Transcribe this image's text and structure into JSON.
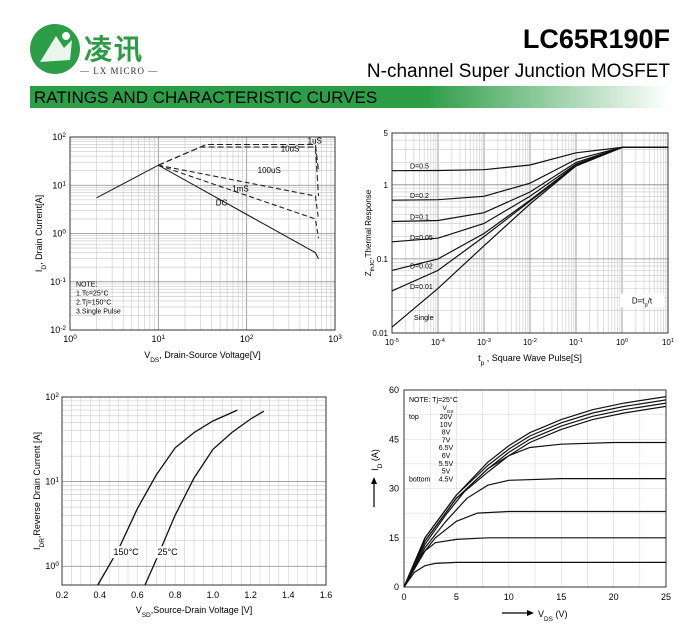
{
  "header": {
    "logo_cn": "凌讯",
    "logo_en": "— LX MICRO —",
    "part_number": "LC65R190F",
    "description": "N-channel Super Junction MOSFET",
    "section_title": "RATINGS AND CHARACTERISTIC CURVES",
    "brand_color": "#2e9d48"
  },
  "chart_data": [
    {
      "type": "line",
      "xlabel": "V_DS, Drain-Source Voltage[V]",
      "ylabel": "I_D, Drain Current[A]",
      "x_scale": "log",
      "y_scale": "log",
      "xlim": [
        1,
        1000
      ],
      "ylim": [
        0.01,
        100
      ],
      "x_ticks": [
        "10^0",
        "10^1",
        "10^2",
        "10^3"
      ],
      "y_ticks": [
        "10^-2",
        "10^-1",
        "10^0",
        "10^1",
        "10^2"
      ],
      "notes": [
        "NOTE:",
        "1.Tc=25°C",
        "2.Tj=150°C",
        "3.Single Pulse"
      ],
      "grid": true,
      "series": [
        {
          "name": "1uS",
          "x": [
            10,
            35,
            600,
            650
          ],
          "y": [
            26,
            70,
            70,
            20
          ]
        },
        {
          "name": "10uS",
          "x": [
            10,
            30,
            600,
            650
          ],
          "y": [
            26,
            62,
            62,
            6
          ]
        },
        {
          "name": "100uS",
          "x": [
            10,
            600,
            650
          ],
          "y": [
            26,
            6,
            2
          ]
        },
        {
          "name": "1mS",
          "x": [
            10,
            600,
            650
          ],
          "y": [
            26,
            2,
            0.8
          ]
        },
        {
          "name": "DC",
          "x": [
            2,
            10,
            600,
            650
          ],
          "y": [
            5.5,
            26,
            0.4,
            0.3
          ]
        }
      ]
    },
    {
      "type": "line",
      "xlabel": "t_p , Square Wave Pulse[S]",
      "ylabel": "Z_thJC,Thermal Response",
      "x_scale": "log",
      "y_scale": "log",
      "xlim": [
        1e-05,
        1
      ],
      "ylim": [
        0.01,
        5
      ],
      "x_ticks": [
        "10^-5",
        "10^-4",
        "10^-3",
        "10^-2",
        "10^-1",
        "10^0",
        "10^1"
      ],
      "y_ticks": [
        "0.01",
        "0.1",
        "1",
        "5"
      ],
      "annotation": "D=t_p/t",
      "grid": true,
      "series": [
        {
          "name": "D=0.5",
          "x": [
            1e-05,
            0.0001,
            0.001,
            0.01,
            0.1,
            1
          ],
          "y": [
            1.55,
            1.56,
            1.6,
            1.85,
            2.7,
            3.2
          ]
        },
        {
          "name": "D=0.2",
          "x": [
            1e-05,
            0.0001,
            0.001,
            0.01,
            0.1,
            1
          ],
          "y": [
            0.62,
            0.63,
            0.7,
            1.05,
            2.2,
            3.2
          ]
        },
        {
          "name": "D=0.1",
          "x": [
            1e-05,
            0.0001,
            0.001,
            0.01,
            0.1,
            1
          ],
          "y": [
            0.32,
            0.33,
            0.42,
            0.8,
            2.0,
            3.2
          ]
        },
        {
          "name": "D=0.05",
          "x": [
            1e-05,
            0.0001,
            0.001,
            0.01,
            0.1,
            1
          ],
          "y": [
            0.17,
            0.19,
            0.3,
            0.7,
            1.9,
            3.2
          ]
        },
        {
          "name": "D=0.02",
          "x": [
            1e-05,
            0.0001,
            0.001,
            0.01,
            0.1,
            1
          ],
          "y": [
            0.07,
            0.1,
            0.22,
            0.62,
            1.85,
            3.2
          ]
        },
        {
          "name": "D=0.01",
          "x": [
            1e-05,
            0.0001,
            0.001,
            0.01,
            0.1,
            1
          ],
          "y": [
            0.037,
            0.07,
            0.2,
            0.6,
            1.8,
            3.2
          ]
        },
        {
          "name": "Single",
          "x": [
            1e-05,
            0.0001,
            0.001,
            0.01,
            0.1,
            1
          ],
          "y": [
            0.012,
            0.04,
            0.15,
            0.55,
            1.8,
            3.2
          ]
        }
      ]
    },
    {
      "type": "line",
      "xlabel": "V_SD,Source-Drain Voltage [V]",
      "ylabel": "I_DR,Reverse Drain Current [A]",
      "x_scale": "linear",
      "y_scale": "log",
      "xlim": [
        0.2,
        1.6
      ],
      "ylim": [
        0.6,
        100
      ],
      "x_ticks": [
        "0.2",
        "0.4",
        "0.6",
        "0.8",
        "1.0",
        "1.2",
        "1.4",
        "1.6"
      ],
      "y_ticks": [
        "10^0",
        "10^1",
        "10^2"
      ],
      "grid": true,
      "series": [
        {
          "name": "150°C",
          "x": [
            0.39,
            0.5,
            0.6,
            0.7,
            0.8,
            0.9,
            1.0,
            1.13
          ],
          "y": [
            0.6,
            1.6,
            4.8,
            12,
            25,
            38,
            52,
            70
          ]
        },
        {
          "name": "25°C",
          "x": [
            0.64,
            0.7,
            0.8,
            0.9,
            1.0,
            1.1,
            1.2,
            1.27
          ],
          "y": [
            0.6,
            1.2,
            4,
            11,
            24,
            38,
            55,
            68
          ]
        }
      ]
    },
    {
      "type": "line",
      "xlabel": "V_DS (V)",
      "ylabel": "I_D (A)",
      "xlim": [
        0,
        25
      ],
      "ylim": [
        0,
        60
      ],
      "x_ticks": [
        "0",
        "5",
        "10",
        "15",
        "20",
        "25"
      ],
      "y_ticks": [
        "0",
        "15",
        "30",
        "45",
        "60"
      ],
      "notes": [
        "NOTE: Tj=25°C"
      ],
      "legend_title": "V_GS",
      "legend_prefix_top": "top",
      "legend_prefix_bottom": "bottom",
      "legend": [
        "20V",
        "10V",
        "8V",
        "7V",
        "6.5V",
        "6V",
        "5.5V",
        "5V",
        "4.5V"
      ],
      "grid": true,
      "series": [
        {
          "name": "20V",
          "x": [
            0,
            2,
            5,
            8,
            10,
            12,
            15,
            18,
            21,
            25
          ],
          "y": [
            0,
            15,
            28,
            38,
            43,
            47,
            51,
            54,
            56,
            58
          ]
        },
        {
          "name": "10V",
          "x": [
            0,
            2,
            5,
            8,
            10,
            12,
            15,
            18,
            21,
            25
          ],
          "y": [
            0,
            15,
            28,
            37,
            42,
            46,
            50,
            53,
            55,
            57
          ]
        },
        {
          "name": "8V",
          "x": [
            0,
            2,
            5,
            8,
            10,
            12,
            15,
            18,
            21,
            25
          ],
          "y": [
            0,
            14,
            27,
            36,
            41,
            45,
            49,
            52,
            54,
            56
          ]
        },
        {
          "name": "7V",
          "x": [
            0,
            2,
            5,
            8,
            10,
            12,
            15,
            18,
            21,
            25
          ],
          "y": [
            0,
            14,
            27,
            35,
            40,
            44,
            48,
            51,
            53,
            55
          ]
        },
        {
          "name": "6.5V",
          "x": [
            0,
            2,
            4,
            6,
            8,
            10,
            12,
            15,
            20,
            25
          ],
          "y": [
            0,
            13,
            22,
            30,
            36,
            40,
            42.5,
            43.5,
            44,
            44
          ]
        },
        {
          "name": "6V",
          "x": [
            0,
            2,
            4,
            6,
            8,
            10,
            15,
            25
          ],
          "y": [
            0,
            12,
            20,
            27,
            31,
            32.5,
            33,
            33
          ]
        },
        {
          "name": "5.5V",
          "x": [
            0,
            2,
            3,
            5,
            7,
            10,
            25
          ],
          "y": [
            0,
            11,
            15,
            20,
            22.5,
            23,
            23
          ]
        },
        {
          "name": "5V",
          "x": [
            0,
            1,
            2,
            3,
            5,
            8,
            25
          ],
          "y": [
            0,
            7,
            11,
            13.5,
            14.5,
            15,
            15
          ]
        },
        {
          "name": "4.5V",
          "x": [
            0,
            1,
            2,
            3,
            5,
            25
          ],
          "y": [
            0,
            4.5,
            6.5,
            7.2,
            7.5,
            7.5
          ]
        }
      ]
    }
  ]
}
